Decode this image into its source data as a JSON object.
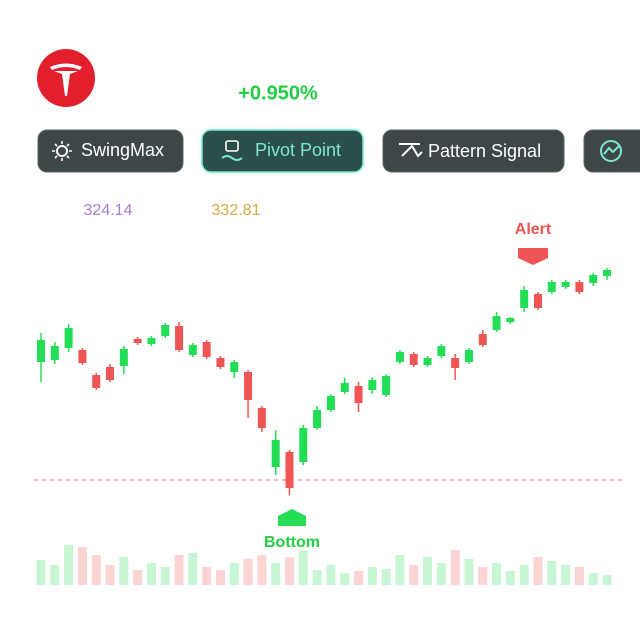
{
  "header": {
    "change": "+0.950%"
  },
  "tabs": [
    "SwingMax",
    "Pivot Point",
    "Pattern Signal"
  ],
  "indicators": [
    "324.14",
    "332.81"
  ],
  "chart_data": {
    "type": "candlestick",
    "up_color": "#22dd55",
    "down_color": "#f05555",
    "ylim": [
      0,
      260
    ],
    "support": 20,
    "annotations": [
      "Bottom",
      "Alert"
    ],
    "open": [
      138,
      140,
      152,
      150,
      125,
      133,
      134,
      161,
      156,
      164,
      174,
      145,
      158,
      142,
      128,
      128,
      92,
      33,
      48,
      38,
      72,
      90,
      108,
      114,
      110,
      105,
      138,
      146,
      135,
      144,
      142,
      138,
      166,
      170,
      178,
      192,
      206,
      208,
      213,
      218,
      217,
      224
    ],
    "close": [
      160,
      154,
      172,
      137,
      112,
      120,
      151,
      157,
      162,
      175,
      150,
      155,
      143,
      133,
      138,
      100,
      72,
      60,
      12,
      72,
      90,
      104,
      117,
      97,
      120,
      124,
      148,
      135,
      142,
      154,
      132,
      150,
      155,
      184,
      182,
      210,
      192,
      218,
      218,
      208,
      225,
      230
    ],
    "high": [
      167,
      158,
      176,
      152,
      127,
      136,
      154,
      163,
      164,
      177,
      178,
      157,
      160,
      144,
      140,
      130,
      94,
      70,
      50,
      75,
      94,
      106,
      122,
      118,
      123,
      126,
      150,
      148,
      144,
      156,
      146,
      152,
      170,
      188,
      183,
      214,
      208,
      220,
      220,
      220,
      227,
      232
    ],
    "low": [
      118,
      136,
      148,
      135,
      110,
      118,
      126,
      155,
      154,
      162,
      148,
      143,
      141,
      131,
      122,
      82,
      68,
      25,
      5,
      35,
      70,
      88,
      106,
      88,
      106,
      103,
      136,
      133,
      133,
      142,
      120,
      136,
      153,
      168,
      176,
      188,
      190,
      206,
      211,
      206,
      214,
      220
    ],
    "volume_ylim": [
      0,
      50
    ],
    "volume": [
      25,
      20,
      40,
      38,
      30,
      20,
      28,
      15,
      22,
      18,
      30,
      32,
      18,
      15,
      22,
      26,
      30,
      22,
      28,
      35,
      15,
      20,
      12,
      14,
      18,
      16,
      30,
      20,
      28,
      22,
      35,
      26,
      18,
      22,
      14,
      20,
      28,
      24,
      20,
      18,
      12,
      10
    ]
  }
}
